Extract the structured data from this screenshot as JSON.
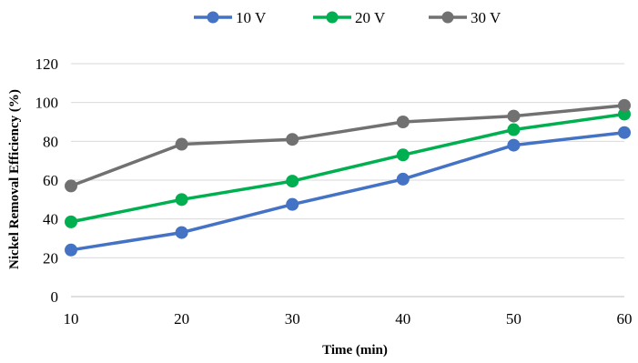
{
  "chart_data": {
    "type": "line",
    "title": "",
    "xlabel": "Time (min)",
    "ylabel": "Nickel Removal Efficiency (%)",
    "x": [
      10,
      20,
      30,
      40,
      50,
      60
    ],
    "xlim": [
      10,
      60
    ],
    "ylim": [
      0,
      120
    ],
    "y_ticks": [
      0,
      20,
      40,
      60,
      80,
      100,
      120
    ],
    "grid": true,
    "legend_position": "top-center",
    "series": [
      {
        "name": "10 V",
        "color": "#4472C4",
        "values": [
          24,
          33,
          47.5,
          60.5,
          78,
          84.5
        ]
      },
      {
        "name": "20 V",
        "color": "#00B050",
        "values": [
          38.5,
          50,
          59.5,
          73,
          86,
          94
        ]
      },
      {
        "name": "30 V",
        "color": "#717171",
        "values": [
          57,
          78.5,
          81,
          90,
          93,
          98.5
        ]
      }
    ]
  }
}
